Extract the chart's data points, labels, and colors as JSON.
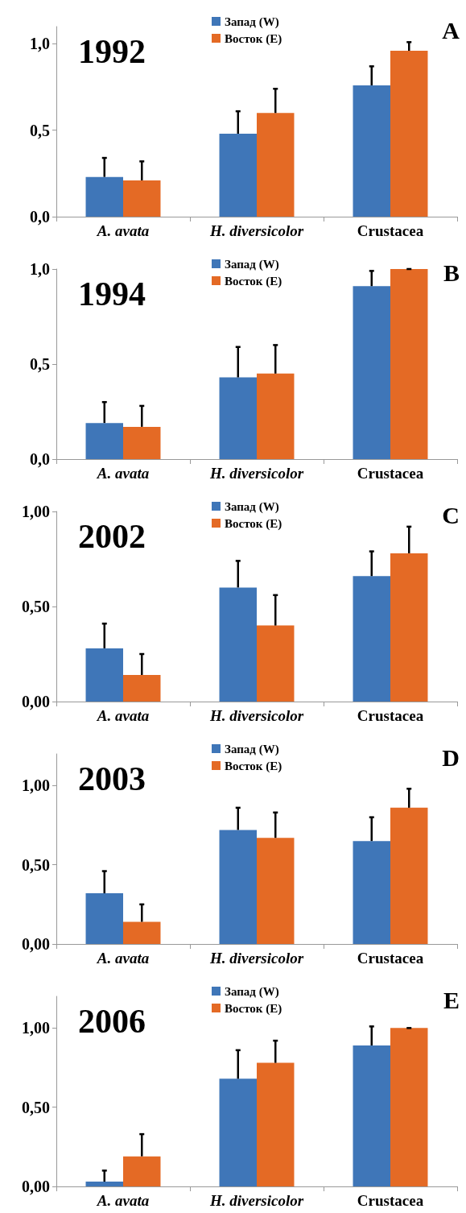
{
  "chart_data": [
    {
      "type": "bar",
      "title": "1992",
      "annotations": [
        "A"
      ],
      "categories": [
        "A. avata",
        "H. diversicolor",
        "Crustacea"
      ],
      "ylim": [
        0,
        1.1
      ],
      "yticks": [
        {
          "value": 0,
          "label": "0,0"
        },
        {
          "value": 0.5,
          "label": "0,5"
        },
        {
          "value": 1,
          "label": "1,0"
        }
      ],
      "legend": "top",
      "series": [
        {
          "name": "Запад (W)",
          "color": "#3f76b8",
          "values": [
            0.23,
            0.48,
            0.76
          ],
          "errors": [
            0.11,
            0.13,
            0.11
          ]
        },
        {
          "name": "Восток (E)",
          "color": "#e46a25",
          "values": [
            0.21,
            0.6,
            0.96
          ],
          "errors": [
            0.11,
            0.14,
            0.05
          ]
        }
      ]
    },
    {
      "type": "bar",
      "title": "1994",
      "annotations": [
        "B"
      ],
      "categories": [
        "A. avata",
        "H. diversicolor",
        "Crustacea"
      ],
      "ylim": [
        0,
        1
      ],
      "yticks": [
        {
          "value": 0,
          "label": "0,0"
        },
        {
          "value": 0.5,
          "label": "0,5"
        },
        {
          "value": 1,
          "label": "1,0"
        }
      ],
      "legend": "top",
      "series": [
        {
          "name": "Запад (W)",
          "color": "#3f76b8",
          "values": [
            0.19,
            0.43,
            0.91
          ],
          "errors": [
            0.11,
            0.16,
            0.08
          ]
        },
        {
          "name": "Восток (E)",
          "color": "#e46a25",
          "values": [
            0.17,
            0.45,
            1.0
          ],
          "errors": [
            0.11,
            0.15,
            0
          ]
        }
      ]
    },
    {
      "type": "bar",
      "title": "2002",
      "annotations": [
        "C"
      ],
      "categories": [
        "A. avata",
        "H. diversicolor",
        "Crustacea"
      ],
      "ylim": [
        0,
        1
      ],
      "yticks": [
        {
          "value": 0,
          "label": "0,00"
        },
        {
          "value": 0.5,
          "label": "0,50"
        },
        {
          "value": 1,
          "label": "1,00"
        }
      ],
      "legend": "top",
      "series": [
        {
          "name": "Запад (W)",
          "color": "#3f76b8",
          "values": [
            0.28,
            0.6,
            0.66
          ],
          "errors": [
            0.13,
            0.14,
            0.13
          ]
        },
        {
          "name": "Восток (E)",
          "color": "#e46a25",
          "values": [
            0.14,
            0.4,
            0.78
          ],
          "errors": [
            0.11,
            0.16,
            0.14
          ]
        }
      ]
    },
    {
      "type": "bar",
      "title": "2003",
      "annotations": [
        "D"
      ],
      "categories": [
        "A. avata",
        "H. diversicolor",
        "Crustacea"
      ],
      "ylim": [
        0,
        1.2
      ],
      "yticks": [
        {
          "value": 0,
          "label": "0,00"
        },
        {
          "value": 0.5,
          "label": "0,50"
        },
        {
          "value": 1,
          "label": "1,00"
        }
      ],
      "legend": "top",
      "series": [
        {
          "name": "Запад (W)",
          "color": "#3f76b8",
          "values": [
            0.32,
            0.72,
            0.65
          ],
          "errors": [
            0.14,
            0.14,
            0.15
          ]
        },
        {
          "name": "Восток (E)",
          "color": "#e46a25",
          "values": [
            0.14,
            0.67,
            0.86
          ],
          "errors": [
            0.11,
            0.16,
            0.12
          ]
        }
      ]
    },
    {
      "type": "bar",
      "title": "2006",
      "annotations": [
        "E"
      ],
      "categories": [
        "A. avata",
        "H. diversicolor",
        "Crustacea"
      ],
      "ylim": [
        0,
        1.2
      ],
      "yticks": [
        {
          "value": 0,
          "label": "0,00"
        },
        {
          "value": 0.5,
          "label": "0,50"
        },
        {
          "value": 1,
          "label": "1,00"
        }
      ],
      "legend": "top",
      "series": [
        {
          "name": "Запад (W)",
          "color": "#3f76b8",
          "values": [
            0.03,
            0.68,
            0.89
          ],
          "errors": [
            0.07,
            0.18,
            0.12
          ]
        },
        {
          "name": "Восток (E)",
          "color": "#e46a25",
          "values": [
            0.19,
            0.78,
            1.0
          ],
          "errors": [
            0.14,
            0.14,
            0
          ]
        }
      ]
    }
  ]
}
